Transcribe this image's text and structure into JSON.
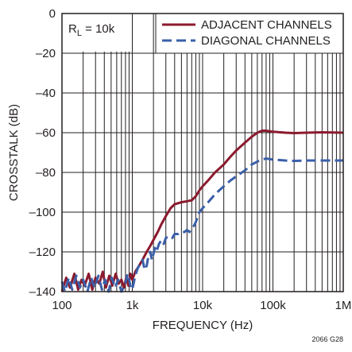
{
  "chart_data": {
    "type": "line",
    "xlabel": "FREQUENCY (Hz)",
    "ylabel": "CROSSTALK (dB)",
    "x_scale": "log",
    "xlim": [
      100,
      1000000
    ],
    "ylim": [
      -140,
      0
    ],
    "grid": true,
    "x_ticks": [
      {
        "value": 100,
        "label": "100"
      },
      {
        "value": 1000,
        "label": "1k"
      },
      {
        "value": 10000,
        "label": "10k"
      },
      {
        "value": 100000,
        "label": "100k"
      },
      {
        "value": 1000000,
        "label": "1M"
      }
    ],
    "y_ticks": [
      {
        "value": 0,
        "label": "0"
      },
      {
        "value": -20,
        "label": "–20"
      },
      {
        "value": -40,
        "label": "–40"
      },
      {
        "value": -60,
        "label": "–60"
      },
      {
        "value": -80,
        "label": "–80"
      },
      {
        "value": -100,
        "label": "–100"
      },
      {
        "value": -120,
        "label": "–120"
      },
      {
        "value": -140,
        "label": "–140"
      }
    ],
    "annotation": {
      "main": "R",
      "sub": "L",
      "rest": " = 10k"
    },
    "figure_code": "2066 G28",
    "legend_position": "top-right",
    "series": [
      {
        "name": "ADJACENT CHANNELS",
        "color": "#8b1a2e",
        "style": "solid",
        "points": [
          [
            100,
            -140
          ],
          [
            115,
            -133
          ],
          [
            130,
            -138
          ],
          [
            150,
            -131
          ],
          [
            170,
            -139
          ],
          [
            190,
            -134
          ],
          [
            210,
            -137
          ],
          [
            240,
            -131
          ],
          [
            270,
            -139
          ],
          [
            300,
            -133
          ],
          [
            340,
            -136
          ],
          [
            380,
            -130
          ],
          [
            420,
            -138
          ],
          [
            470,
            -132
          ],
          [
            520,
            -137
          ],
          [
            580,
            -131
          ],
          [
            640,
            -136
          ],
          [
            700,
            -134
          ],
          [
            760,
            -138
          ],
          [
            820,
            -133
          ],
          [
            880,
            -137
          ],
          [
            940,
            -131
          ],
          [
            1000,
            -134
          ],
          [
            1100,
            -130
          ],
          [
            1200,
            -128
          ],
          [
            1400,
            -124
          ],
          [
            1600,
            -120
          ],
          [
            1800,
            -117
          ],
          [
            2000,
            -114
          ],
          [
            2300,
            -110
          ],
          [
            2600,
            -106
          ],
          [
            3000,
            -102
          ],
          [
            3500,
            -98
          ],
          [
            4000,
            -96
          ],
          [
            5000,
            -95
          ],
          [
            6000,
            -94.5
          ],
          [
            7000,
            -94
          ],
          [
            8000,
            -92
          ],
          [
            9000,
            -89
          ],
          [
            10000,
            -87
          ],
          [
            12000,
            -84
          ],
          [
            15000,
            -80
          ],
          [
            20000,
            -76
          ],
          [
            25000,
            -72
          ],
          [
            30000,
            -69
          ],
          [
            40000,
            -65
          ],
          [
            50000,
            -62
          ],
          [
            60000,
            -60
          ],
          [
            70000,
            -59
          ],
          [
            80000,
            -59
          ],
          [
            100000,
            -59.5
          ],
          [
            150000,
            -60
          ],
          [
            200000,
            -60.2
          ],
          [
            300000,
            -60
          ],
          [
            500000,
            -59.8
          ],
          [
            1000000,
            -60
          ]
        ]
      },
      {
        "name": "DIAGONAL CHANNELS",
        "color": "#3a5fa8",
        "style": "dashed",
        "points": [
          [
            100,
            -135
          ],
          [
            110,
            -140
          ],
          [
            125,
            -133
          ],
          [
            140,
            -139
          ],
          [
            160,
            -132
          ],
          [
            180,
            -138
          ],
          [
            200,
            -134
          ],
          [
            230,
            -140
          ],
          [
            260,
            -133
          ],
          [
            290,
            -138
          ],
          [
            330,
            -132
          ],
          [
            370,
            -139
          ],
          [
            410,
            -134
          ],
          [
            460,
            -140
          ],
          [
            510,
            -133
          ],
          [
            570,
            -138
          ],
          [
            630,
            -134
          ],
          [
            700,
            -140
          ],
          [
            780,
            -137
          ],
          [
            860,
            -131
          ],
          [
            940,
            -137
          ],
          [
            1000,
            -139
          ],
          [
            1100,
            -132
          ],
          [
            1200,
            -128
          ],
          [
            1300,
            -126
          ],
          [
            1400,
            -124
          ],
          [
            1500,
            -129
          ],
          [
            1600,
            -127
          ],
          [
            1700,
            -122
          ],
          [
            1800,
            -120
          ],
          [
            1900,
            -124
          ],
          [
            2000,
            -121
          ],
          [
            2100,
            -118
          ],
          [
            2200,
            -120
          ],
          [
            2400,
            -116
          ],
          [
            2600,
            -114
          ],
          [
            2800,
            -116
          ],
          [
            3000,
            -113
          ],
          [
            3300,
            -112
          ],
          [
            3700,
            -113
          ],
          [
            4000,
            -111
          ],
          [
            4500,
            -111
          ],
          [
            5000,
            -110
          ],
          [
            5500,
            -110
          ],
          [
            6000,
            -109
          ],
          [
            6500,
            -110
          ],
          [
            7000,
            -108
          ],
          [
            7500,
            -107
          ],
          [
            8000,
            -105
          ],
          [
            9000,
            -100
          ],
          [
            10000,
            -98
          ],
          [
            12000,
            -95
          ],
          [
            15000,
            -91
          ],
          [
            20000,
            -87
          ],
          [
            25000,
            -84
          ],
          [
            30000,
            -82
          ],
          [
            40000,
            -79
          ],
          [
            50000,
            -76
          ],
          [
            60000,
            -74.5
          ],
          [
            70000,
            -73.5
          ],
          [
            80000,
            -73
          ],
          [
            100000,
            -73.5
          ],
          [
            150000,
            -74
          ],
          [
            200000,
            -74.2
          ],
          [
            300000,
            -74
          ],
          [
            500000,
            -74
          ],
          [
            1000000,
            -74
          ]
        ]
      }
    ]
  }
}
